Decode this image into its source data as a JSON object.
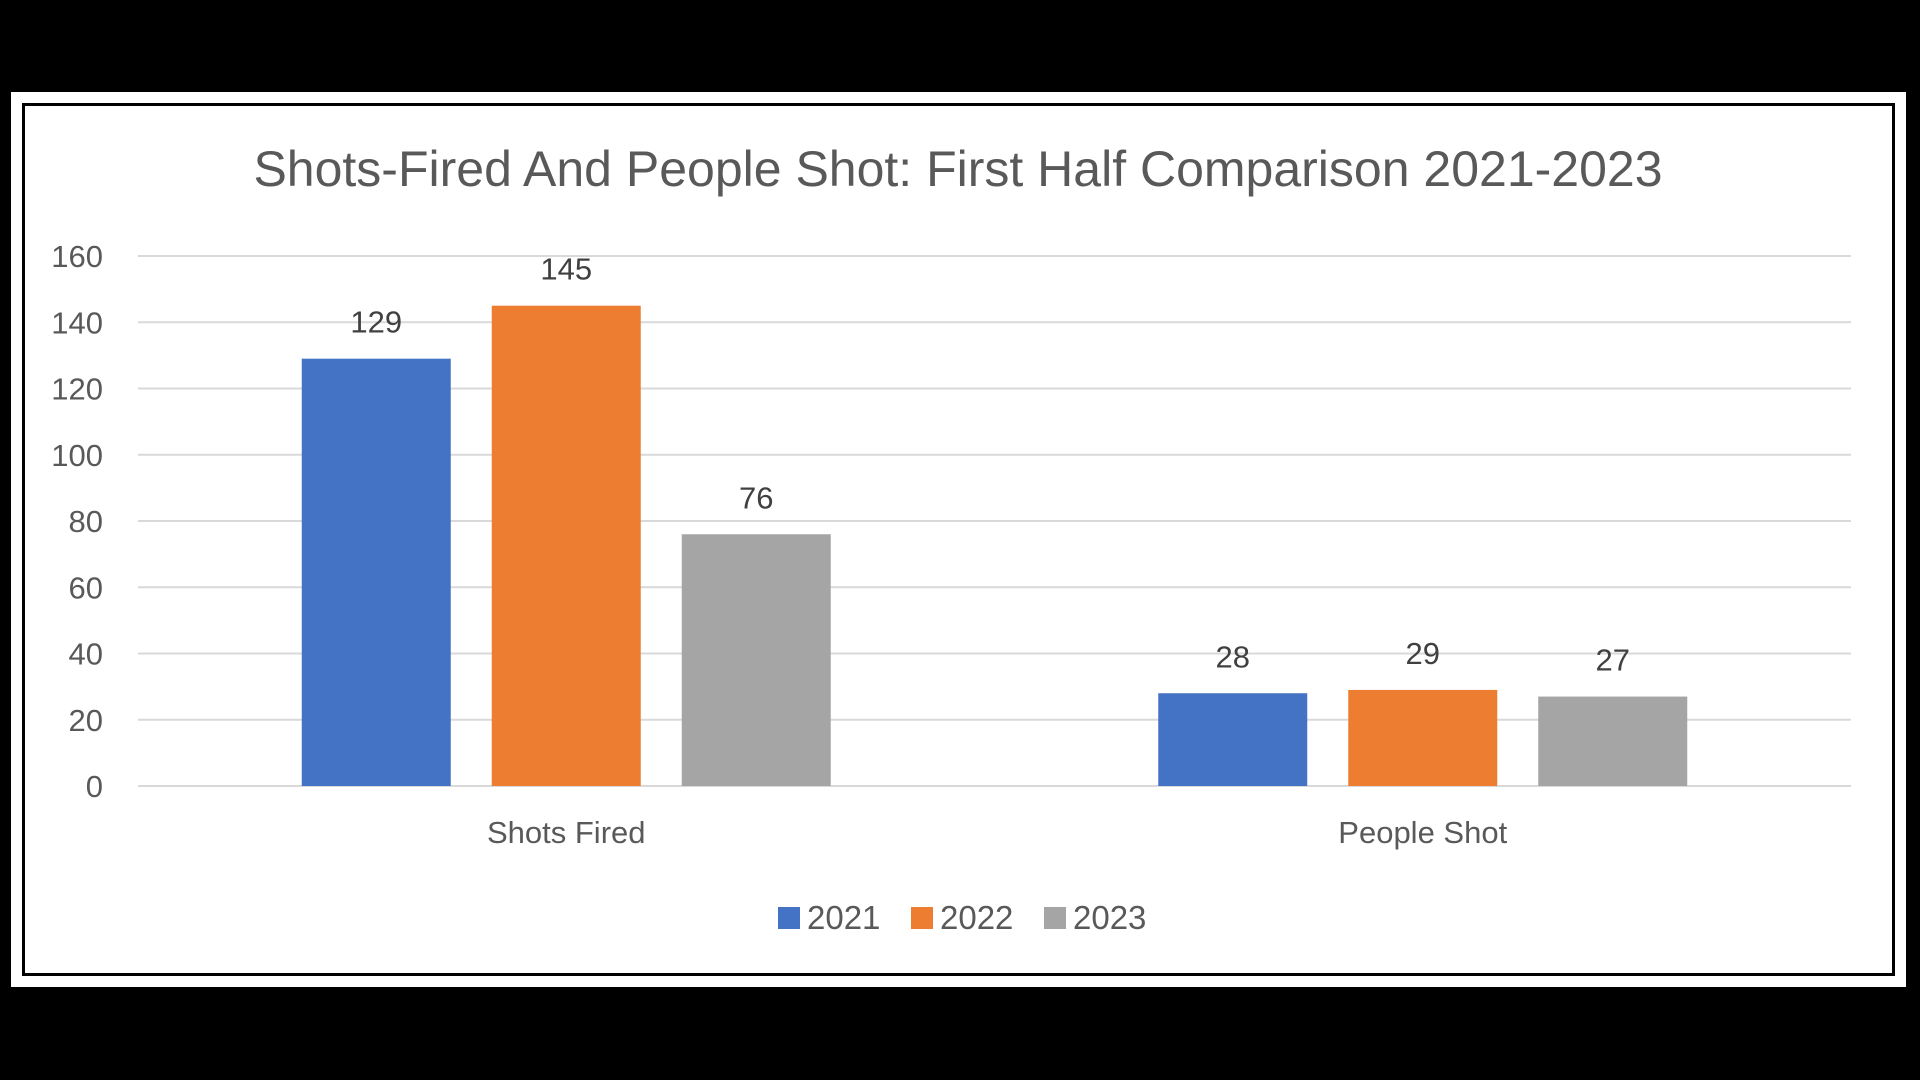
{
  "chart_data": {
    "type": "bar",
    "title": "Shots-Fired And People Shot: First Half Comparison 2021-2023",
    "xlabel": "",
    "ylabel": "",
    "categories": [
      "Shots Fired",
      "People Shot"
    ],
    "series": [
      {
        "name": "2021",
        "values": [
          129,
          28
        ],
        "color": "#4472C4"
      },
      {
        "name": "2022",
        "values": [
          145,
          29
        ],
        "color": "#ED7D31"
      },
      {
        "name": "2023",
        "values": [
          76,
          27
        ],
        "color": "#A5A5A5"
      }
    ],
    "ylim": [
      0,
      160
    ],
    "yticks": [
      0,
      20,
      40,
      60,
      80,
      100,
      120,
      140,
      160
    ],
    "data_labels": true,
    "grid": true,
    "legend_position": "bottom"
  },
  "colors": {
    "background": "#000000",
    "panel": "#ffffff",
    "gridline": "#D9D9D9",
    "text": "#595959"
  }
}
